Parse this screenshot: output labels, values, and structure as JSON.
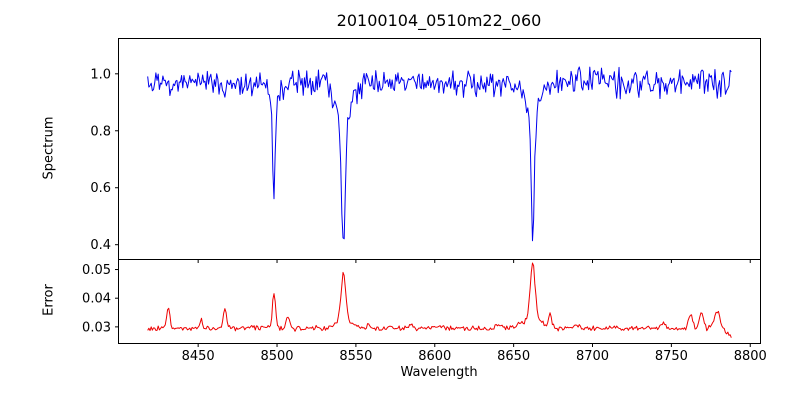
{
  "figure": {
    "title": "20100104_0510m22_060",
    "background": "#ffffff",
    "text_color": "#000000",
    "spine_color": "#000000"
  },
  "axes": {
    "xlabel": "Wavelength",
    "xlim": [
      8399.5,
      8806.5
    ],
    "x_tick_values": [
      8450,
      8500,
      8550,
      8600,
      8650,
      8700,
      8750,
      8800
    ],
    "x_tick_labels": [
      "8450",
      "8500",
      "8550",
      "8600",
      "8650",
      "8700",
      "8750",
      "8800"
    ],
    "top": {
      "ylabel": "Spectrum",
      "ylim": [
        0.348,
        1.124
      ],
      "y_tick_values": [
        0.4,
        0.6,
        0.8,
        1.0
      ],
      "y_tick_labels": [
        "0.4",
        "0.6",
        "0.8",
        "1.0"
      ]
    },
    "bottom": {
      "ylabel": "Error",
      "ylim": [
        0.0242,
        0.0535
      ],
      "y_tick_values": [
        0.03,
        0.04,
        0.05
      ],
      "y_tick_labels": [
        "0.03",
        "0.04",
        "0.05"
      ]
    }
  },
  "chart_data": [
    {
      "type": "line",
      "name": "spectrum",
      "panel": "top",
      "color": "#0000ee",
      "line_width": 1,
      "x_start": 8418,
      "x_end": 8788,
      "n_points": 500,
      "continuum": 0.968,
      "noise_amp_start": 0.048,
      "noise_amp_end": 0.066,
      "seed": 20100104,
      "absorption_lines": [
        {
          "center": 8433.0,
          "core_depth": 0.035,
          "core_sigma": 1.0,
          "wing_depth": 0.0,
          "wing_sigma": 1.0
        },
        {
          "center": 8467.0,
          "core_depth": 0.04,
          "core_sigma": 1.0,
          "wing_depth": 0.0,
          "wing_sigma": 1.0
        },
        {
          "center": 8498.0,
          "core_depth": 0.36,
          "core_sigma": 0.8,
          "wing_depth": 0.06,
          "wing_sigma": 3.0
        },
        {
          "center": 8542.1,
          "core_depth": 0.46,
          "core_sigma": 1.2,
          "wing_depth": 0.14,
          "wing_sigma": 5.0
        },
        {
          "center": 8662.1,
          "core_depth": 0.44,
          "core_sigma": 1.0,
          "wing_depth": 0.12,
          "wing_sigma": 4.0
        }
      ],
      "line_minima": [
        {
          "wavelength": 8498,
          "flux": 0.55
        },
        {
          "wavelength": 8542,
          "flux": 0.39
        },
        {
          "wavelength": 8662,
          "flux": 0.42
        }
      ]
    },
    {
      "type": "line",
      "name": "error",
      "panel": "bottom",
      "color": "#ee0000",
      "line_width": 1,
      "x_start": 8418,
      "x_end": 8788,
      "n_points": 500,
      "baseline": 0.0295,
      "noise_amp": 0.0011,
      "seed": 510,
      "peaks": [
        {
          "center": 8431.0,
          "amp": 0.0072,
          "sigma": 1.0
        },
        {
          "center": 8452.0,
          "amp": 0.003,
          "sigma": 0.9
        },
        {
          "center": 8467.0,
          "amp": 0.007,
          "sigma": 1.0
        },
        {
          "center": 8484.0,
          "amp": 0.0014,
          "sigma": 0.8
        },
        {
          "center": 8498.0,
          "amp": 0.0122,
          "sigma": 1.0
        },
        {
          "center": 8507.0,
          "amp": 0.0036,
          "sigma": 1.3
        },
        {
          "center": 8542.1,
          "amp": 0.0165,
          "sigma": 1.4
        },
        {
          "center": 8542.1,
          "amp": 0.003,
          "sigma": 5.0
        },
        {
          "center": 8558.0,
          "amp": 0.001,
          "sigma": 1.0
        },
        {
          "center": 8585.0,
          "amp": 0.0012,
          "sigma": 1.2
        },
        {
          "center": 8605.0,
          "amp": 0.001,
          "sigma": 1.0
        },
        {
          "center": 8640.0,
          "amp": 0.0014,
          "sigma": 1.5
        },
        {
          "center": 8662.1,
          "amp": 0.019,
          "sigma": 1.5
        },
        {
          "center": 8662.1,
          "amp": 0.0035,
          "sigma": 6.0
        },
        {
          "center": 8673.0,
          "amp": 0.0045,
          "sigma": 1.0
        },
        {
          "center": 8690.0,
          "amp": 0.0014,
          "sigma": 1.2
        },
        {
          "center": 8745.0,
          "amp": 0.002,
          "sigma": 1.2
        },
        {
          "center": 8762.0,
          "amp": 0.005,
          "sigma": 1.3
        },
        {
          "center": 8769.0,
          "amp": 0.0058,
          "sigma": 1.2
        },
        {
          "center": 8779.0,
          "amp": 0.0058,
          "sigma": 2.0
        }
      ],
      "end_dip": {
        "center": 8792.0,
        "amp": 0.003,
        "sigma": 6.0
      },
      "peak_maxima": [
        {
          "wavelength": 8498,
          "error": 0.042
        },
        {
          "wavelength": 8542,
          "error": 0.048
        },
        {
          "wavelength": 8662,
          "error": 0.052
        }
      ]
    }
  ]
}
